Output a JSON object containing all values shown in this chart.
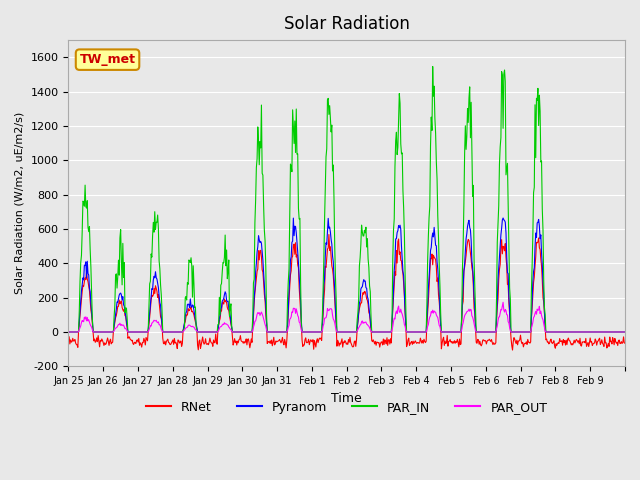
{
  "title": "Solar Radiation",
  "ylabel": "Solar Radiation (W/m2, uE/m2/s)",
  "xlabel": "Time",
  "ylim": [
    -200,
    1700
  ],
  "yticks": [
    -200,
    0,
    200,
    400,
    600,
    800,
    1000,
    1200,
    1400,
    1600
  ],
  "bg_color": "#e8e8e8",
  "plot_bg": "#f0f0f0",
  "colors": {
    "RNet": "#ff0000",
    "Pyranom": "#0000ff",
    "PAR_IN": "#00cc00",
    "PAR_OUT": "#ff00ff"
  },
  "station_label": "TW_met",
  "station_box_color": "#ffff99",
  "station_border_color": "#cc8800",
  "n_days": 16,
  "start_day": 25,
  "hours_per_day": 24,
  "dt_hours": 0.5
}
